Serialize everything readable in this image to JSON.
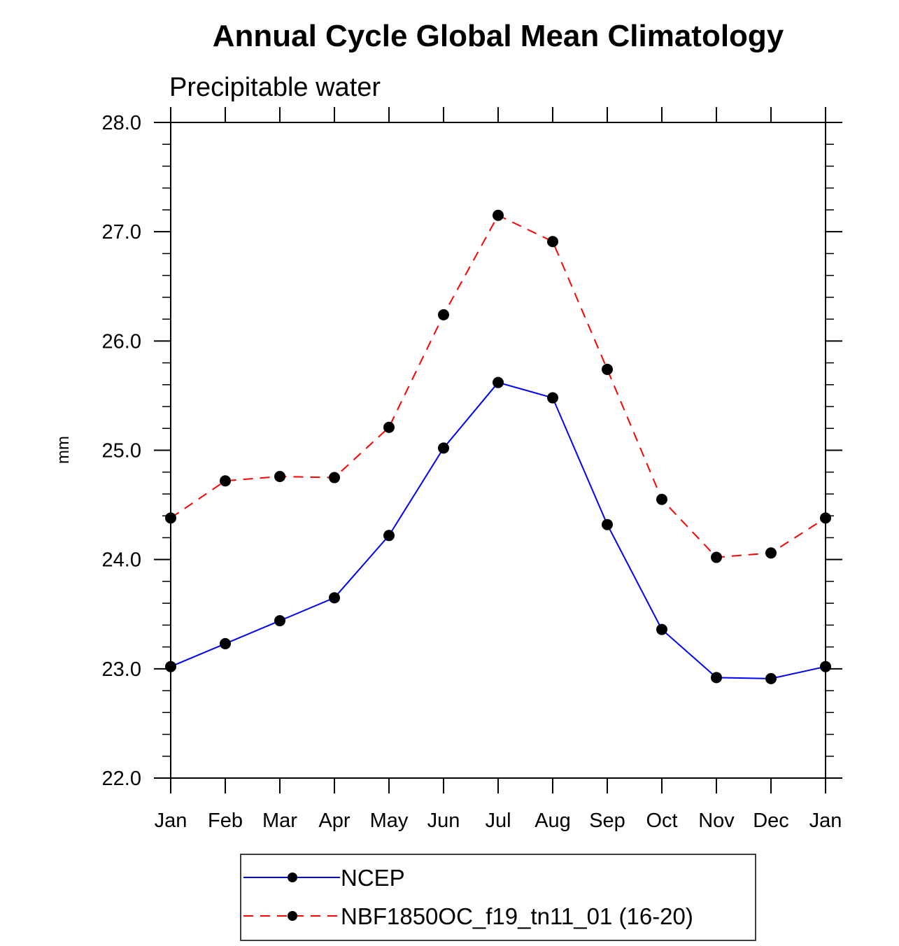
{
  "chart_data": {
    "type": "line",
    "title": "Annual Cycle Global Mean Climatology",
    "subtitle": "Precipitable water",
    "xlabel": "",
    "ylabel": "mm",
    "ylim": [
      22.0,
      28.0
    ],
    "yticks": [
      "22.0",
      "23.0",
      "24.0",
      "25.0",
      "26.0",
      "27.0",
      "28.0"
    ],
    "ytick_values": [
      22,
      23,
      24,
      25,
      26,
      27,
      28
    ],
    "categories": [
      "Jan",
      "Feb",
      "Mar",
      "Apr",
      "May",
      "Jun",
      "Jul",
      "Aug",
      "Sep",
      "Oct",
      "Nov",
      "Dec",
      "Jan"
    ],
    "grid": false,
    "legend_position": "bottom-center",
    "series": [
      {
        "name": "NCEP",
        "color": "#0000ff",
        "dash": "solid",
        "values": [
          23.02,
          23.23,
          23.44,
          23.65,
          24.22,
          25.02,
          25.62,
          25.48,
          24.32,
          23.36,
          22.92,
          22.91,
          23.02
        ]
      },
      {
        "name": "NBF1850OC_f19_tn11_01 (16-20)",
        "color": "#ff0000",
        "dash": "dashed",
        "values": [
          24.38,
          24.72,
          24.76,
          24.75,
          25.21,
          26.24,
          27.15,
          26.91,
          25.74,
          24.55,
          24.02,
          24.06,
          24.38
        ]
      }
    ]
  }
}
